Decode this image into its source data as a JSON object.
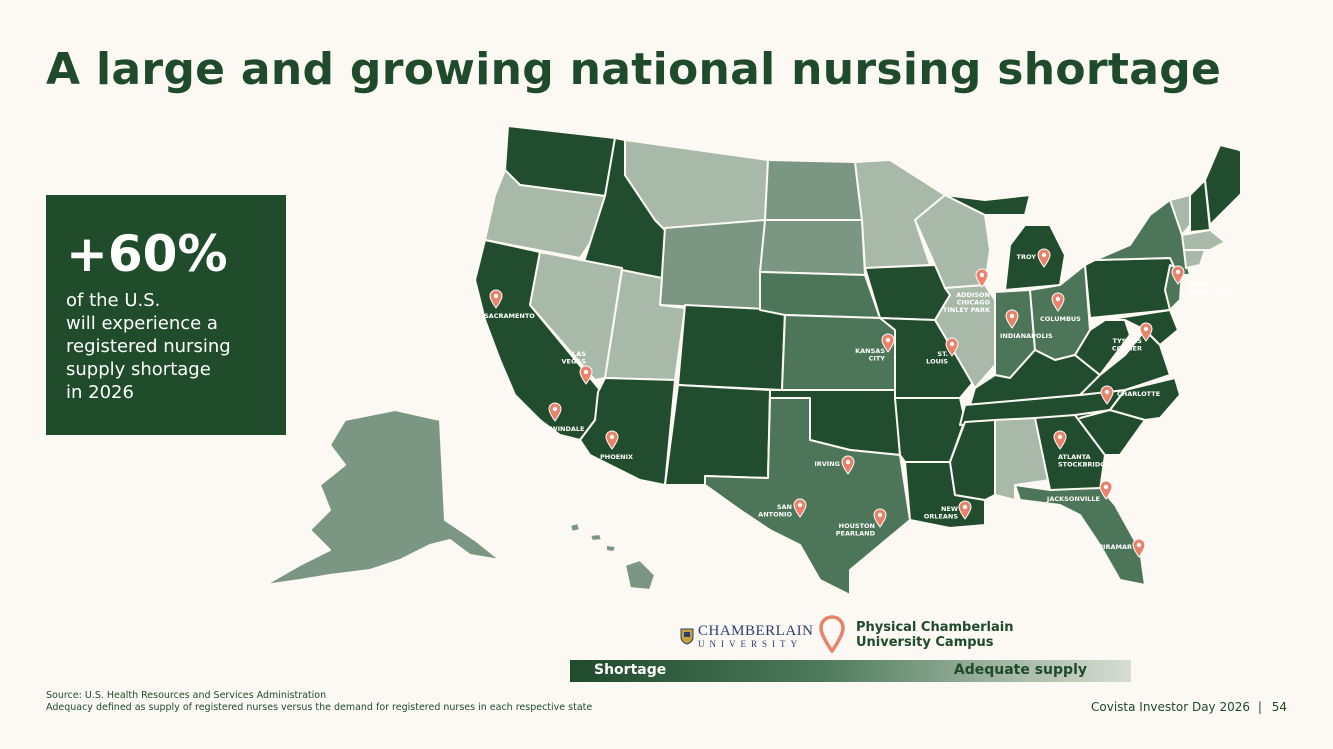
{
  "title": "A large and growing national nursing shortage",
  "stat": {
    "value": "+60%",
    "lines": [
      "of the U.S.",
      "will experience a",
      "registered nursing",
      "supply shortage",
      "in 2026"
    ]
  },
  "colors": {
    "shortage": "#214d2e",
    "moderate": "#4d7559",
    "mild": "#7b9683",
    "adequate": "#a8b8a9",
    "pin": "#e8826a",
    "background": "#fcf8f4"
  },
  "legend": {
    "logo_name": "CHAMBERLAIN",
    "logo_sub": "UNIVERSITY",
    "pin_label_line1": "Physical Chamberlain",
    "pin_label_line2": "University Campus",
    "scale_low": "Shortage",
    "scale_high": "Adequate supply"
  },
  "campuses": [
    {
      "label": [
        "SACRAMENTO"
      ]
    },
    {
      "label": [
        "LAS",
        "VEGAS"
      ]
    },
    {
      "label": [
        "IRWINDALE"
      ]
    },
    {
      "label": [
        "PHOENIX"
      ]
    },
    {
      "label": [
        "IRVING"
      ]
    },
    {
      "label": [
        "SAN",
        "ANTONIO"
      ]
    },
    {
      "label": [
        "HOUSTON",
        "PEARLAND"
      ]
    },
    {
      "label": [
        "KANSAS",
        "CITY"
      ]
    },
    {
      "label": [
        "ST.",
        "LOUIS"
      ]
    },
    {
      "label": [
        "NEW",
        "ORLEANS"
      ]
    },
    {
      "label": [
        "ADDISON",
        "CHICAGO",
        "TINLEY PARK"
      ]
    },
    {
      "label": [
        "INDIANAPOLIS"
      ]
    },
    {
      "label": [
        "COLUMBUS"
      ]
    },
    {
      "label": [
        "TROY"
      ]
    },
    {
      "label": [
        "TYSONS",
        "CORNER"
      ]
    },
    {
      "label": [
        "NORTH",
        "BRUNSWICK"
      ]
    },
    {
      "label": [
        "CHARLOTTE"
      ]
    },
    {
      "label": [
        "ATLANTA",
        "STOCKBRIDGE"
      ]
    },
    {
      "label": [
        "JACKSONVILLE"
      ]
    },
    {
      "label": [
        "MIRAMAR"
      ]
    }
  ],
  "source_line1": "Source: U.S. Health Resources and Services Administration",
  "source_line2": "Adequacy defined as supply of registered nurses versus the demand for registered nurses in each respective state",
  "footer_text": "Covista Investor Day 2026",
  "footer_sep": "|",
  "page_number": "54"
}
